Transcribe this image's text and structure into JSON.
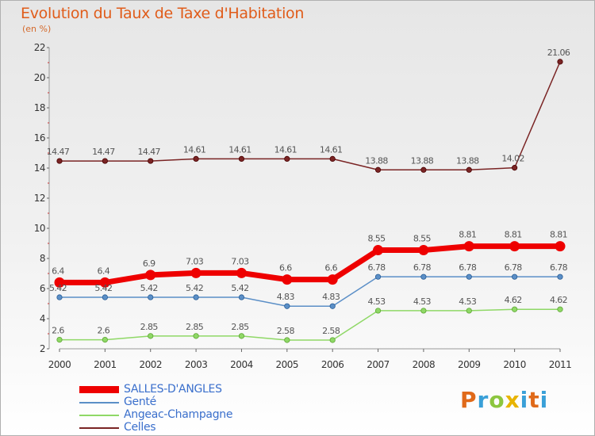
{
  "colors": {
    "title": "#e05c1a",
    "legend_text": "#3a6fcc",
    "brand_p": "#e06a1a",
    "brand_r": "#3aa0d8",
    "brand_o": "#8cc63f",
    "brand_x": "#e8b400",
    "brand_i": "#3aa0d8",
    "brand_t": "#e06a1a"
  },
  "brand": {
    "text": "Proxiti"
  },
  "chart_data": {
    "type": "line",
    "title": "Evolution du Taux de Taxe d'Habitation",
    "subtitle": "(en %)",
    "xlabel": "",
    "ylabel": "",
    "ylim": [
      2,
      22
    ],
    "yticks": [
      2,
      4,
      6,
      8,
      10,
      12,
      14,
      16,
      18,
      20,
      22
    ],
    "categories": [
      "2000",
      "2001",
      "2002",
      "2003",
      "2004",
      "2005",
      "2006",
      "2007",
      "2008",
      "2009",
      "2010",
      "2011"
    ],
    "series": [
      {
        "name": "SALLES-D'ANGLES",
        "color": "#ee0000",
        "values": [
          6.4,
          6.4,
          6.9,
          7.03,
          7.03,
          6.6,
          6.6,
          8.55,
          8.55,
          8.81,
          8.81,
          8.81
        ],
        "labels": [
          "6.4",
          "6.4",
          "6.9",
          "7.03",
          "7.03",
          "6.6",
          "6.6",
          "8.55",
          "8.55",
          "8.81",
          "8.81",
          "8.81"
        ],
        "label_pos": "above",
        "width": 7
      },
      {
        "name": "Genté",
        "color": "#5b8fc7",
        "values": [
          5.42,
          5.42,
          5.42,
          5.42,
          5.42,
          4.83,
          4.83,
          6.78,
          6.78,
          6.78,
          6.78,
          6.78
        ],
        "labels": [
          "5.42",
          "5.42",
          "5.42",
          "5.42",
          "5.42",
          "4.83",
          "4.83",
          "6.78",
          "6.78",
          "6.78",
          "6.78",
          "6.78"
        ],
        "label_pos": "above",
        "width": 1.5
      },
      {
        "name": "Angeac-Champagne",
        "color": "#8fd866",
        "values": [
          2.6,
          2.6,
          2.85,
          2.85,
          2.85,
          2.58,
          2.58,
          4.53,
          4.53,
          4.53,
          4.62,
          4.62
        ],
        "labels": [
          "2.6",
          "2.6",
          "2.85",
          "2.85",
          "2.85",
          "2.58",
          "2.58",
          "4.53",
          "4.53",
          "4.53",
          "4.62",
          "4.62"
        ],
        "label_pos": "above",
        "width": 1.5
      },
      {
        "name": "Celles",
        "color": "#7a2424",
        "values": [
          14.47,
          14.47,
          14.47,
          14.61,
          14.61,
          14.61,
          14.61,
          13.88,
          13.88,
          13.88,
          14.02,
          21.06
        ],
        "labels": [
          "14.47",
          "14.47",
          "14.47",
          "14.61",
          "14.61",
          "14.61",
          "14.61",
          "13.88",
          "13.88",
          "13.88",
          "14.02",
          "21.06"
        ],
        "label_pos": "above",
        "width": 1.5
      }
    ]
  }
}
